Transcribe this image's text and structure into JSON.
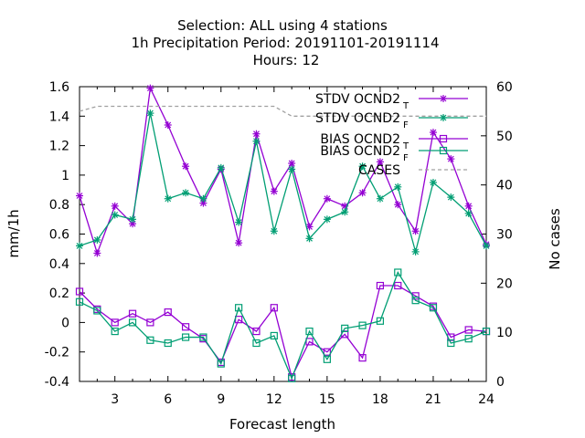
{
  "chart_data": {
    "type": "line",
    "title_lines": [
      "Selection: ALL using     4 stations",
      "1h Precipitation   Period: 20191101-20191114",
      "Hours:  12"
    ],
    "xlabel": "Forecast length",
    "ylabel": "mm/1h",
    "y2label": "No cases",
    "xlim": [
      1,
      24
    ],
    "ylim": [
      -0.4,
      1.6
    ],
    "y2lim": [
      0,
      60
    ],
    "x_ticks": [
      3,
      6,
      9,
      12,
      15,
      18,
      21,
      24
    ],
    "y_ticks": [
      -0.4,
      -0.2,
      0,
      0.2,
      0.4,
      0.6,
      0.8,
      1,
      1.2,
      1.4,
      1.6
    ],
    "y_tick_labels": [
      "-0.4",
      "-0.2",
      "0",
      "0.2",
      "0.4",
      "0.6",
      "0.8",
      "1",
      "1.2",
      "1.4",
      "1.6"
    ],
    "y2_ticks": [
      0,
      10,
      20,
      30,
      40,
      50,
      60
    ],
    "legend_position": "top-right",
    "grid": false,
    "x": [
      1,
      2,
      3,
      4,
      5,
      6,
      7,
      8,
      9,
      10,
      11,
      12,
      13,
      14,
      15,
      16,
      17,
      18,
      19,
      20,
      21,
      22,
      23,
      24
    ],
    "series": [
      {
        "name": "STDV OCND2",
        "sub": "T",
        "color": "#9400d3",
        "marker": "star",
        "axis": "y1",
        "values": [
          0.86,
          0.47,
          0.79,
          0.67,
          1.59,
          1.34,
          1.06,
          0.81,
          1.04,
          0.54,
          1.28,
          0.89,
          1.08,
          0.65,
          0.84,
          0.79,
          0.88,
          1.09,
          0.8,
          0.62,
          1.29,
          1.11,
          0.79,
          0.53
        ]
      },
      {
        "name": "STDV OCND2",
        "sub": "F",
        "color": "#009e73",
        "marker": "star",
        "axis": "y1",
        "values": [
          0.52,
          0.56,
          0.73,
          0.7,
          1.42,
          0.84,
          0.88,
          0.84,
          1.05,
          0.68,
          1.23,
          0.62,
          1.04,
          0.57,
          0.7,
          0.75,
          1.06,
          0.84,
          0.92,
          0.48,
          0.95,
          0.85,
          0.74,
          0.52
        ]
      },
      {
        "name": "BIAS OCND2",
        "sub": "T",
        "color": "#9400d3",
        "marker": "square",
        "axis": "y1",
        "values": [
          0.21,
          0.09,
          0.0,
          0.06,
          0.0,
          0.07,
          -0.03,
          -0.11,
          -0.27,
          0.02,
          -0.06,
          0.1,
          -0.37,
          -0.13,
          -0.2,
          -0.08,
          -0.24,
          0.25,
          0.25,
          0.18,
          0.11,
          -0.1,
          -0.05,
          -0.06
        ]
      },
      {
        "name": "BIAS OCND2",
        "sub": "F",
        "color": "#009e73",
        "marker": "square",
        "axis": "y1",
        "values": [
          0.14,
          0.08,
          -0.06,
          0.0,
          -0.12,
          -0.14,
          -0.1,
          -0.1,
          -0.28,
          0.1,
          -0.14,
          -0.09,
          -0.38,
          -0.06,
          -0.25,
          -0.04,
          -0.02,
          0.01,
          0.34,
          0.15,
          0.1,
          -0.14,
          -0.11,
          -0.06
        ]
      },
      {
        "name": "CASES",
        "sub": "",
        "color": "#a0a0a0",
        "marker": "none",
        "dash": true,
        "axis": "y2",
        "values": [
          55,
          56,
          56,
          56,
          56,
          56,
          56,
          56,
          56,
          56,
          56,
          56,
          54,
          54,
          54,
          54,
          54,
          54,
          54,
          54,
          54,
          54,
          54,
          54
        ]
      }
    ]
  }
}
